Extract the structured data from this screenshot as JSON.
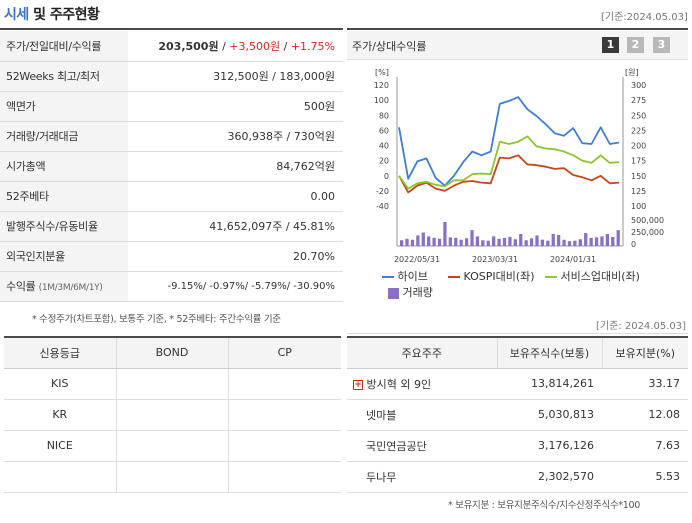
{
  "header": {
    "title_hl": "시세",
    "title_rest": " 및 주주현황",
    "standard_date": "[기준:2024.05.03]"
  },
  "stats": [
    {
      "label": "주가/전일대비/수익률",
      "price": "203,500원",
      "sep1": " / ",
      "change": "+3,500원",
      "sep2": " / ",
      "pct": "+1.75%"
    },
    {
      "label": "52Weeks 최고/최저",
      "value": "312,500원 / 183,000원"
    },
    {
      "label": "액면가",
      "value": "500원"
    },
    {
      "label": "거래량/거래대금",
      "value": "360,938주 / 730억원"
    },
    {
      "label": "시가총액",
      "value": "84,762억원"
    },
    {
      "label": "52주베타",
      "value": "0.00"
    },
    {
      "label": "발행주식수/유동비율",
      "value": "41,652,097주 / 45.81%"
    },
    {
      "label": "외국인지분율",
      "value": "20.70%"
    },
    {
      "label": "수익률",
      "sublabel": "(1M/3M/6M/1Y)",
      "value": "-9.15%/ -0.97%/ -5.79%/ -30.90%"
    }
  ],
  "footnote1": "* 수정주가(차트포함), 보통주 기준, * 52주베타: 주간수익률 기준",
  "chart_section": {
    "title": "주가/상대수익률",
    "buttons": [
      "1",
      "2",
      "3"
    ],
    "standard_date": "[기준: 2024.05.03]"
  },
  "chart_data": {
    "type": "line",
    "left_axis_unit": "[%]",
    "right_axis_unit": "[원]",
    "left_ticks": [
      "120",
      "100",
      "80",
      "60",
      "40",
      "20",
      "0",
      "-20",
      "-40"
    ],
    "right_ticks": [
      "300",
      "275",
      "250",
      "225",
      "200",
      "175",
      "150",
      "125",
      "100"
    ],
    "volume_ticks": [
      "500,000",
      "250,000",
      "0"
    ],
    "x_labels": [
      "2022/05/31",
      "2023/03/31",
      "2024/01/31"
    ],
    "ylim_left": [
      -40,
      120
    ],
    "series": [
      {
        "name": "하이브",
        "color": "#3e7ed4",
        "values": [
          64,
          -4,
          19,
          23,
          -3,
          -13,
          0,
          18,
          32,
          27,
          32,
          95,
          99,
          104,
          88,
          79,
          68,
          56,
          53,
          63,
          43,
          42,
          64,
          42,
          44
        ]
      },
      {
        "name": "KOSPI대비(좌)",
        "color": "#c8451c",
        "values": [
          0,
          -22,
          -13,
          -9,
          -17,
          -20,
          -13,
          -8,
          -7,
          -9,
          -10,
          24,
          23,
          27,
          15,
          14,
          12,
          9,
          10,
          1,
          -2,
          -6,
          0,
          -10,
          -9
        ]
      },
      {
        "name": "서비스업대비(좌)",
        "color": "#8ec42e",
        "values": [
          0,
          -17,
          -10,
          -8,
          -12,
          -14,
          -6,
          -6,
          2,
          3,
          2,
          45,
          42,
          45,
          52,
          39,
          36,
          35,
          32,
          27,
          20,
          17,
          27,
          17,
          18
        ]
      }
    ],
    "volume_name": "거래량",
    "volume_color": "#8a6fc4",
    "volume": [
      120000,
      150000,
      130000,
      220000,
      280000,
      200000,
      170000,
      150000,
      500000,
      180000,
      170000,
      130000,
      160000,
      330000,
      200000,
      120000,
      110000,
      200000,
      150000,
      170000,
      190000,
      140000,
      250000,
      120000,
      160000,
      220000,
      130000,
      110000,
      250000,
      230000,
      130000,
      100000,
      110000,
      140000,
      270000,
      170000,
      180000,
      200000,
      250000,
      190000,
      330000
    ]
  },
  "credit": {
    "headers": [
      "신용등급",
      "BOND",
      "CP"
    ],
    "rows": [
      [
        "KIS",
        "",
        ""
      ],
      [
        "KR",
        "",
        ""
      ],
      [
        "NICE",
        "",
        ""
      ],
      [
        "",
        "",
        ""
      ]
    ]
  },
  "holders": {
    "headers": [
      "주요주주",
      "보유주식수(보통)",
      "보유지분(%)"
    ],
    "rows": [
      {
        "name": "방시혁 외 9인",
        "shares": "13,814,261",
        "pct": "33.17"
      },
      {
        "name": "넷마블",
        "shares": "5,030,813",
        "pct": "12.08"
      },
      {
        "name": "국민연금공단",
        "shares": "3,176,126",
        "pct": "7.63"
      },
      {
        "name": "두나무",
        "shares": "2,302,570",
        "pct": "5.53"
      }
    ]
  },
  "footnote2": "* 보유지분 : 보유지분주식수/지수산정주식수*100"
}
